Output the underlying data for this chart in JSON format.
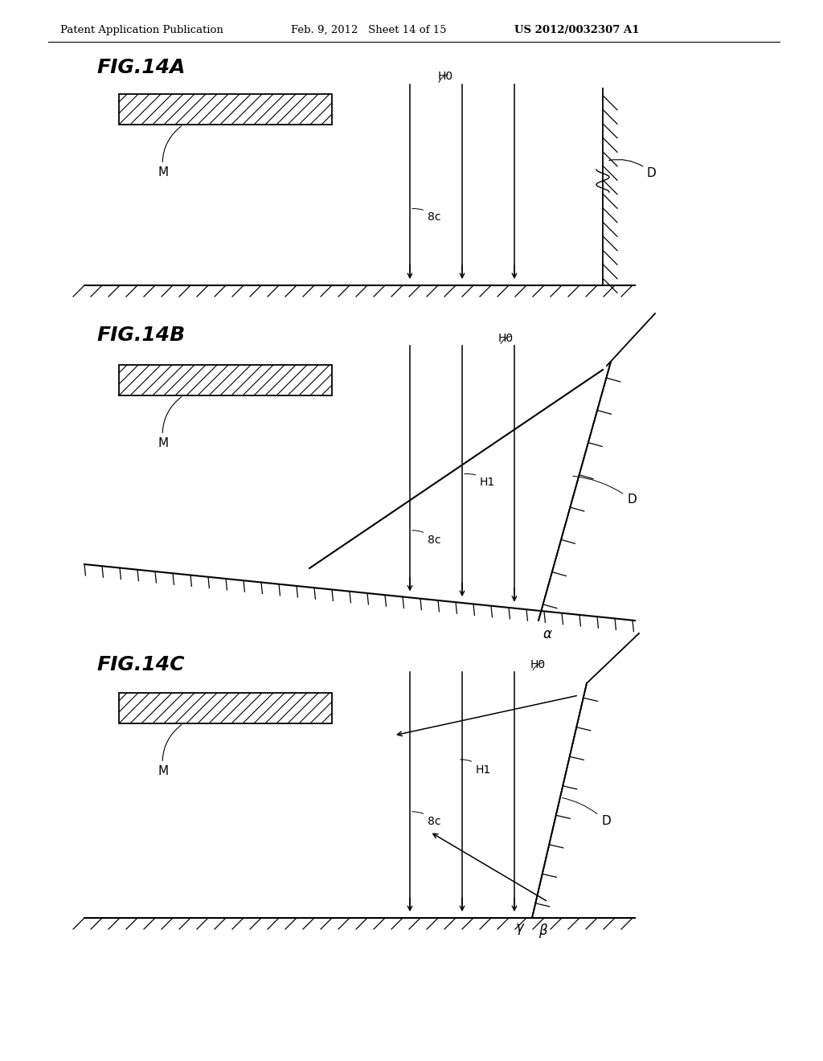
{
  "header_left": "Patent Application Publication",
  "header_mid": "Feb. 9, 2012   Sheet 14 of 15",
  "header_right": "US 2012/0032307 A1",
  "background_color": "#ffffff",
  "line_color": "#000000",
  "fig_labels": [
    "FIG.14A",
    "FIG.14B",
    "FIG.14C"
  ]
}
